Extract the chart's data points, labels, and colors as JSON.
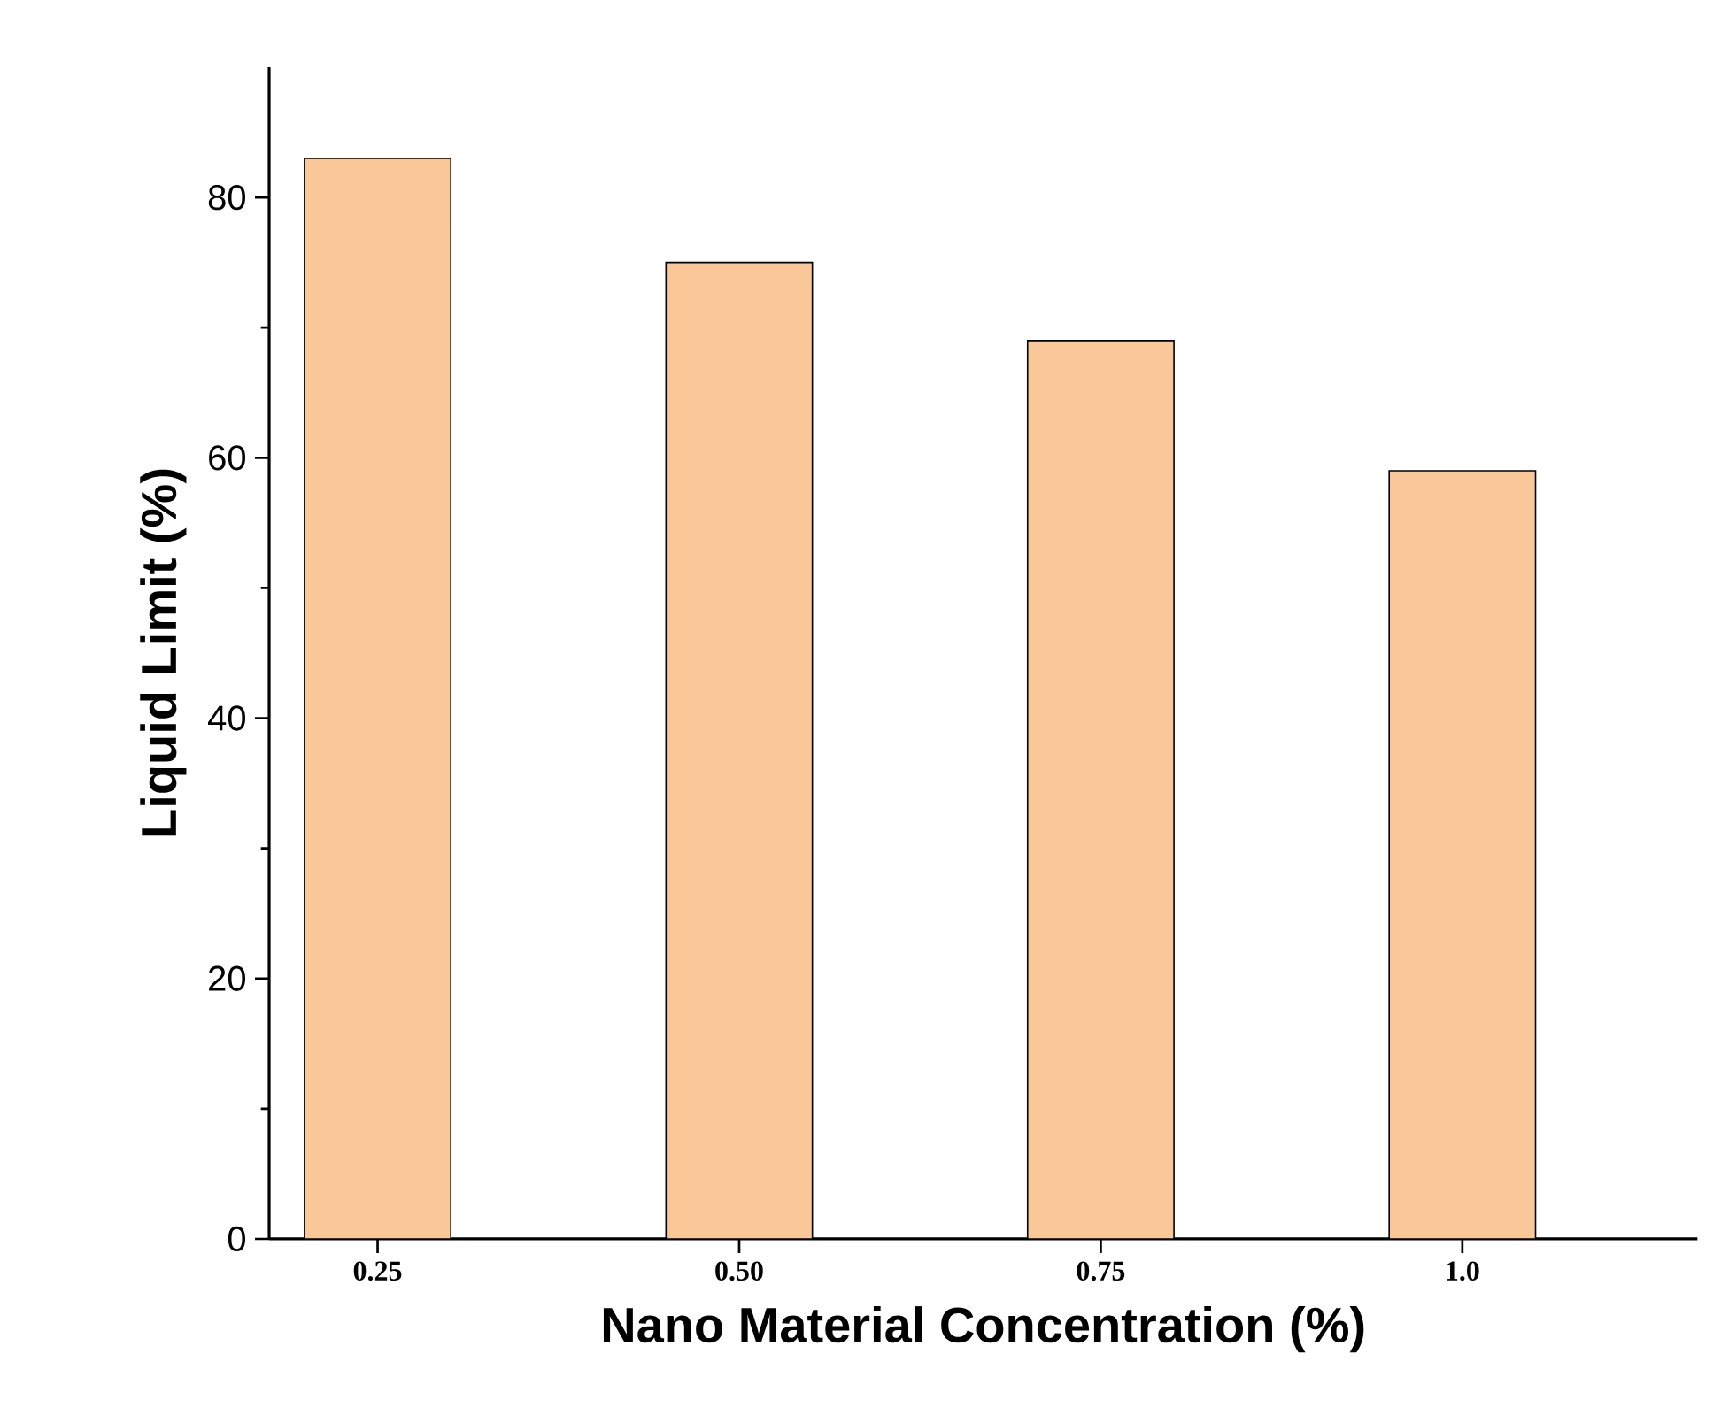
{
  "chart_data": {
    "type": "bar",
    "xlabel": "Nano Material Concentration (%)",
    "ylabel": "Liquid Limit (%)",
    "categories": [
      "0.25",
      "0.50",
      "0.75",
      "1.0"
    ],
    "values": [
      83,
      75,
      69,
      59
    ],
    "color": "#fac898",
    "ylim": [
      0,
      90
    ],
    "yticks": [
      0,
      20,
      40,
      60,
      80
    ],
    "grid": false
  }
}
